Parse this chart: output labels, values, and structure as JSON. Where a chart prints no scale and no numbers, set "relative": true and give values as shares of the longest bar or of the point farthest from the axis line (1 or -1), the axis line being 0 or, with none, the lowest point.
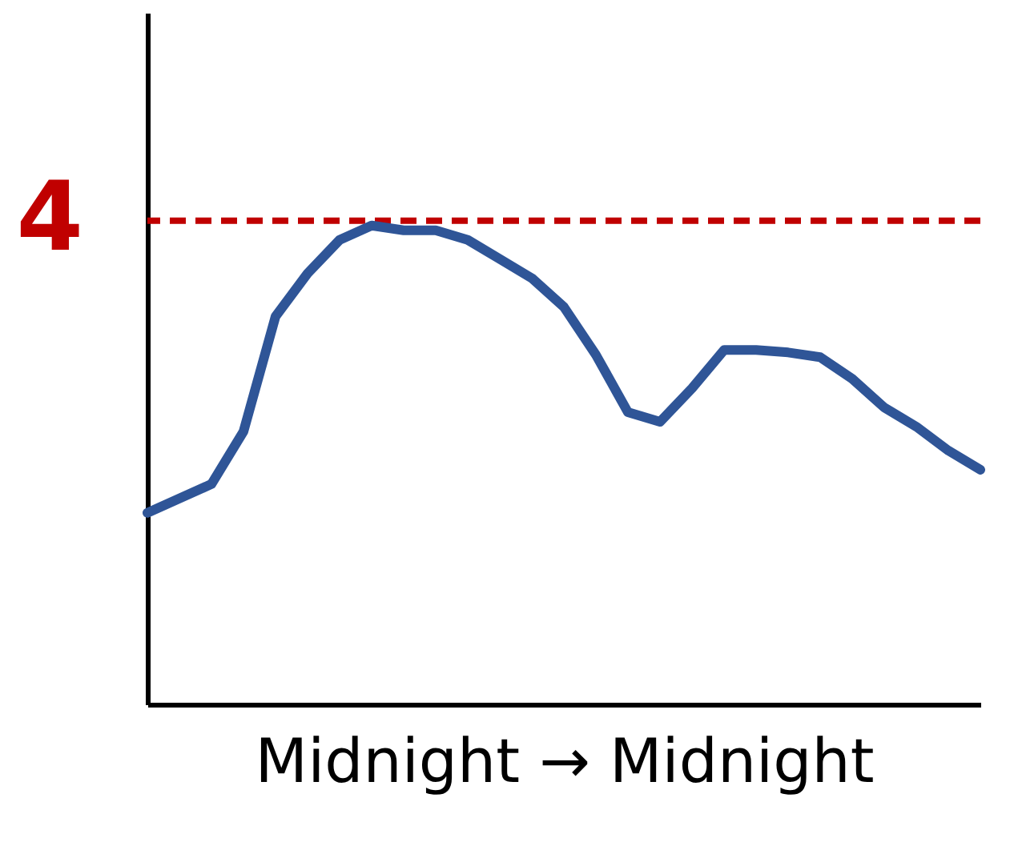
{
  "chart_data": {
    "type": "line",
    "relative": true,
    "xlabel": "Midnight → Midnight",
    "categories": [
      null,
      null,
      null,
      null,
      null,
      null,
      null,
      null,
      null,
      null,
      null,
      null,
      null,
      null,
      null,
      null,
      null,
      null,
      null,
      null,
      null,
      null,
      null,
      null,
      null,
      null,
      null
    ],
    "series": [
      {
        "color": "#2f5597",
        "values": [
          0.4,
          0.43,
          0.46,
          0.57,
          0.81,
          0.9,
          0.97,
          1.0,
          0.99,
          0.99,
          0.97,
          0.93,
          0.89,
          0.83,
          0.73,
          0.61,
          0.59,
          0.66,
          0.74,
          0.74,
          0.735,
          0.725,
          0.68,
          0.62,
          0.58,
          0.53,
          0.49
        ]
      }
    ],
    "ref_lines": [
      {
        "axis": "y",
        "value": 1.01,
        "color": "#c00000",
        "line_style": "dashed"
      }
    ],
    "annotations": [
      "4"
    ],
    "grid": false,
    "tick_labels": false,
    "marker": "none",
    "line_style": "solid"
  }
}
